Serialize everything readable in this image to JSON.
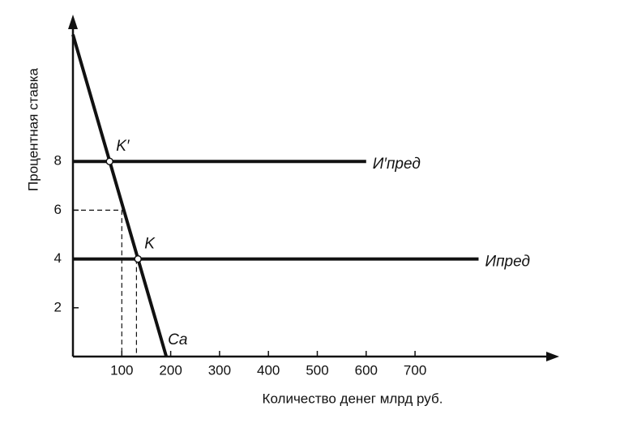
{
  "chart_data": {
    "type": "line",
    "x_label": "Количество денег  млрд руб.",
    "y_label": "Процентная ставка",
    "xlim": [
      0,
      1000
    ],
    "ylim": [
      0,
      13.8
    ],
    "xticks": [
      100,
      200,
      300,
      400,
      500,
      600,
      700
    ],
    "yticks": [
      2,
      4,
      6,
      8
    ],
    "series": [
      {
        "name": "Cа",
        "color": "#111111",
        "x": [
          0,
          191
        ],
        "values": [
          13.2,
          0
        ]
      },
      {
        "name": "И′пред",
        "color": "#111111",
        "x": [
          0,
          600
        ],
        "values": [
          8,
          8
        ]
      },
      {
        "name": "Ипред",
        "color": "#111111",
        "x": [
          0,
          830
        ],
        "values": [
          4,
          4
        ]
      }
    ],
    "points": [
      {
        "label": "K′",
        "x": 75,
        "y": 8
      },
      {
        "label": "K",
        "x": 133,
        "y": 4
      }
    ],
    "guides": [
      {
        "x": [
          0,
          100,
          100
        ],
        "y": [
          6,
          6,
          0
        ]
      },
      {
        "x": [
          130,
          130
        ],
        "y": [
          4,
          0
        ]
      }
    ]
  }
}
